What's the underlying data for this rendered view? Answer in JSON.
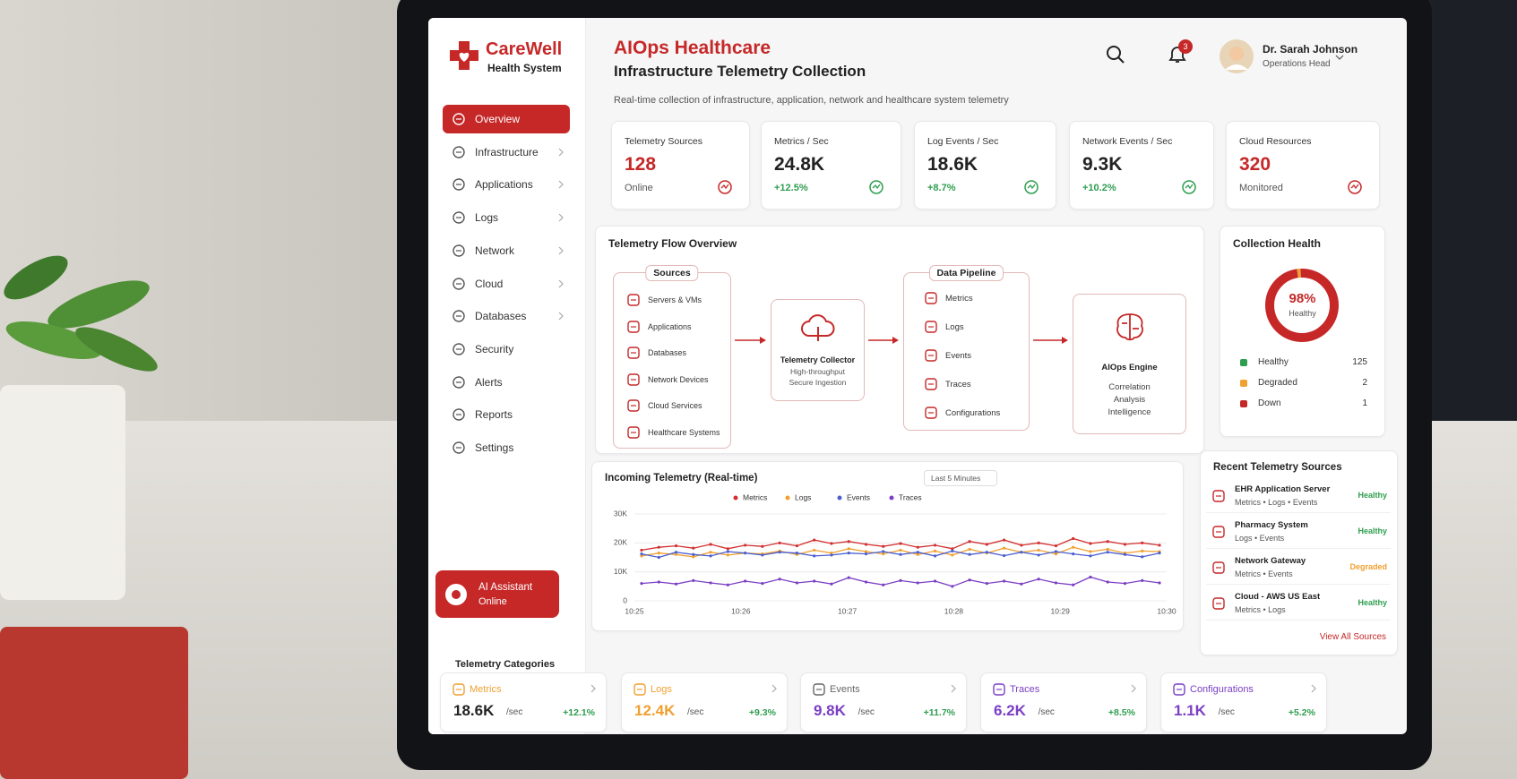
{
  "brand": {
    "name": "CareWell",
    "subtitle": "Health System"
  },
  "nav": [
    "Overview",
    "Infrastructure",
    "Applications",
    "Logs",
    "Network",
    "Cloud",
    "Databases",
    "Security",
    "Alerts",
    "Reports",
    "Settings"
  ],
  "assistant": {
    "title": "AI Assistant",
    "status": "Online"
  },
  "header": {
    "title": "AIOps Healthcare",
    "subtitle": "Infrastructure Telemetry Collection",
    "description": "Real-time collection of infrastructure, application, network and healthcare system telemetry"
  },
  "user": {
    "name": "Dr. Sarah Johnson",
    "role": "Operations Head",
    "notifications": "3"
  },
  "kpis": [
    {
      "label": "Telemetry Sources",
      "value": "128",
      "note": "Online",
      "value_color": "#c62828",
      "icon_color": "#c62828"
    },
    {
      "label": "Metrics / Sec",
      "value": "24.8K",
      "change": "+12.5%",
      "value_color": "#222222",
      "icon_color": "#2e9e4f"
    },
    {
      "label": "Log Events / Sec",
      "value": "18.6K",
      "change": "+8.7%",
      "value_color": "#222222",
      "icon_color": "#2e9e4f"
    },
    {
      "label": "Network Events / Sec",
      "value": "9.3K",
      "change": "+10.2%",
      "value_color": "#222222",
      "icon_color": "#2e9e4f"
    },
    {
      "label": "Cloud Resources",
      "value": "320",
      "note": "Monitored",
      "value_color": "#c62828",
      "icon_color": "#c62828"
    }
  ],
  "flow": {
    "title": "Telemetry Flow Overview",
    "sources_title": "Sources",
    "sources": [
      "Servers & VMs",
      "Applications",
      "Databases",
      "Network Devices",
      "Cloud Services",
      "Healthcare Systems"
    ],
    "collector": {
      "title": "Telemetry Collector",
      "lines": [
        "High-throughput",
        "Secure Ingestion"
      ]
    },
    "pipeline_title": "Data Pipeline",
    "pipeline": [
      "Metrics",
      "Logs",
      "Events",
      "Traces",
      "Configurations"
    ],
    "engine": {
      "title": "AIOps Engine",
      "lines": [
        "Correlation",
        "Analysis",
        "Intelligence"
      ]
    }
  },
  "health": {
    "title": "Collection Health",
    "percent_label": "98%",
    "status": "Healthy",
    "items": [
      {
        "name": "Healthy",
        "count": 125,
        "color": "#2e9e4f"
      },
      {
        "name": "Degraded",
        "count": 2,
        "color": "#f0a030"
      },
      {
        "name": "Down",
        "count": 1,
        "color": "#c62828"
      }
    ]
  },
  "chart": {
    "type": "line",
    "title": "Incoming Telemetry (Real-time)",
    "range": "Last 5 Minutes",
    "ylim": [
      0,
      30000
    ],
    "yticks": [
      0,
      {
        "value": 10000,
        "label": "10K"
      },
      {
        "value": 20000,
        "label": "20K"
      },
      {
        "value": 30000,
        "label": "30K"
      }
    ],
    "xtick_labels": [
      "10:25",
      "10:26",
      "10:27",
      "10:28",
      "10:29",
      "10:30"
    ],
    "series": [
      {
        "name": "Metrics",
        "color": "#d32f2f",
        "values": [
          17500,
          18500,
          19000,
          18200,
          19500,
          18000,
          19200,
          18800,
          20000,
          19000,
          21000,
          19800,
          20500,
          19500,
          18800,
          19800,
          18500,
          19200,
          18000,
          20500,
          19500,
          21000,
          19200,
          20000,
          19000,
          21500,
          19800,
          20500,
          19500,
          20000,
          19200
        ]
      },
      {
        "name": "Logs",
        "color": "#f0a030",
        "values": [
          15500,
          16500,
          16000,
          15200,
          16800,
          15800,
          16500,
          16200,
          17200,
          16000,
          17500,
          16500,
          18000,
          17000,
          16200,
          17500,
          16000,
          17200,
          15800,
          17800,
          16500,
          18200,
          16800,
          17500,
          16200,
          18500,
          17000,
          17800,
          16500,
          17200,
          17000
        ]
      },
      {
        "name": "Events",
        "color": "#4a5fd0",
        "values": [
          16200,
          15000,
          16800,
          16000,
          15500,
          17000,
          16500,
          15800,
          16800,
          16500,
          15500,
          15800,
          16500,
          16200,
          17000,
          16000,
          16800,
          15500,
          17200,
          16000,
          16800,
          15600,
          16800,
          15800,
          17000,
          16200,
          15500,
          16800,
          16000,
          15200,
          16500
        ]
      },
      {
        "name": "Traces",
        "color": "#7b3fc4",
        "values": [
          6000,
          6500,
          5800,
          7000,
          6200,
          5500,
          6800,
          6000,
          7500,
          6200,
          6800,
          5800,
          8000,
          6500,
          5500,
          7000,
          6200,
          6800,
          5000,
          7200,
          6000,
          6800,
          5800,
          7500,
          6200,
          5500,
          8200,
          6500,
          6000,
          7000,
          6200
        ]
      }
    ]
  },
  "recent": {
    "title": "Recent Telemetry Sources",
    "items": [
      {
        "name": "EHR Application Server",
        "detail": "Metrics • Logs • Events",
        "status": "Healthy",
        "status_color": "#2e9e4f"
      },
      {
        "name": "Pharmacy System",
        "detail": "Logs • Events",
        "status": "Healthy",
        "status_color": "#2e9e4f"
      },
      {
        "name": "Network Gateway",
        "detail": "Metrics • Events",
        "status": "Degraded",
        "status_color": "#f0a030"
      },
      {
        "name": "Cloud - AWS US East",
        "detail": "Metrics • Logs",
        "status": "Healthy",
        "status_color": "#2e9e4f"
      }
    ],
    "link": "View All Sources"
  },
  "categories": {
    "title": "Telemetry Categories",
    "items": [
      {
        "name": "Metrics",
        "value": "18.6K",
        "unit": "/sec",
        "change": "+12.1%",
        "name_color": "#f0a030",
        "value_color": "#222222"
      },
      {
        "name": "Logs",
        "value": "12.4K",
        "unit": "/sec",
        "change": "+9.3%",
        "name_color": "#f0a030",
        "value_color": "#f0a030"
      },
      {
        "name": "Events",
        "value": "9.8K",
        "unit": "/sec",
        "change": "+11.7%",
        "name_color": "#666666",
        "value_color": "#7b3fc4"
      },
      {
        "name": "Traces",
        "value": "6.2K",
        "unit": "/sec",
        "change": "+8.5%",
        "name_color": "#7b3fc4",
        "value_color": "#7b3fc4"
      },
      {
        "name": "Configurations",
        "value": "1.1K",
        "unit": "/sec",
        "change": "+5.2%",
        "name_color": "#7b3fc4",
        "value_color": "#7b3fc4"
      }
    ]
  }
}
